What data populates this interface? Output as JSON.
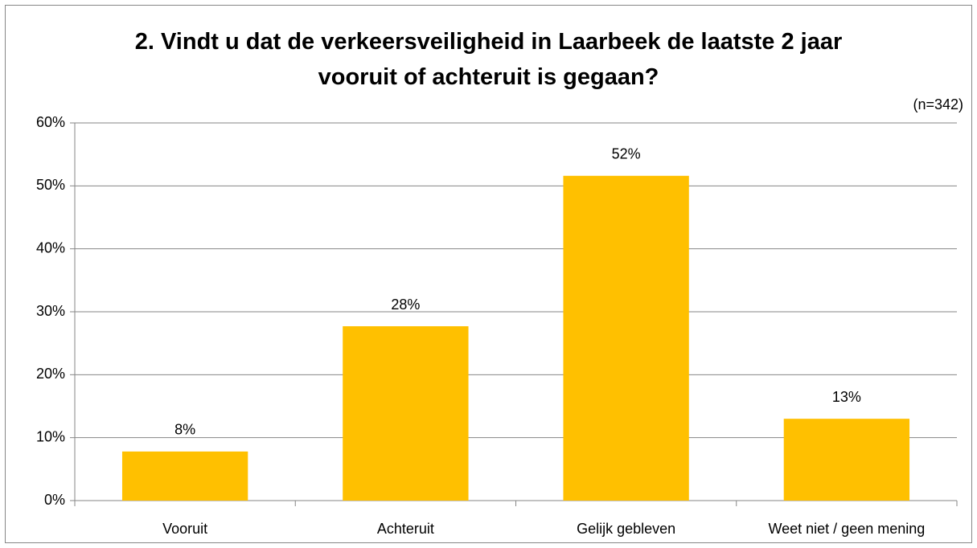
{
  "chart_data": {
    "type": "bar",
    "title": "2. Vindt u dat de verkeersveiligheid in Laarbeek de laatste 2 jaar vooruit of achteruit is gegaan?",
    "annotation": "(n=342)",
    "categories": [
      "Vooruit",
      "Achteruit",
      "Gelijk gebleven",
      "Weet niet / geen mening"
    ],
    "values": [
      7.8,
      27.7,
      51.6,
      13.0
    ],
    "value_labels": [
      "8%",
      "28%",
      "52%",
      "13%"
    ],
    "color": "#ffc000",
    "ylim": [
      0,
      60
    ],
    "yticks": [
      {
        "value": 0,
        "label": "0%"
      },
      {
        "value": 10,
        "label": "10%"
      },
      {
        "value": 20,
        "label": "20%"
      },
      {
        "value": 30,
        "label": "30%"
      },
      {
        "value": 40,
        "label": "40%"
      },
      {
        "value": 50,
        "label": "50%"
      },
      {
        "value": 60,
        "label": "60%"
      }
    ],
    "grid": true
  }
}
